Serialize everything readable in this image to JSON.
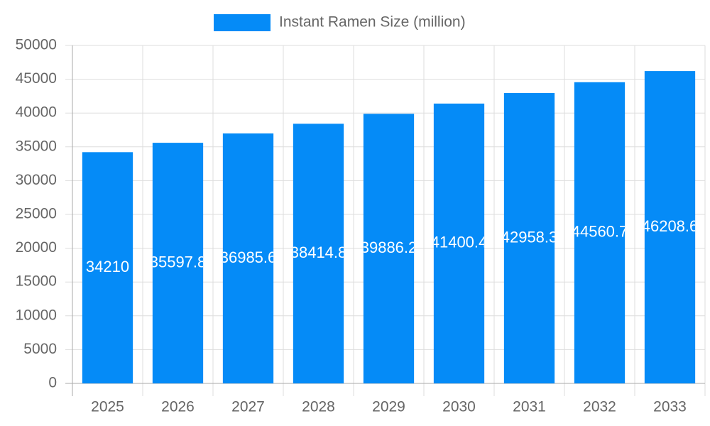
{
  "chart_data": {
    "type": "bar",
    "legend": "Instant Ramen Size (million)",
    "legend_position": "top",
    "color": "#058bf7",
    "categories": [
      "2025",
      "2026",
      "2027",
      "2028",
      "2029",
      "2030",
      "2031",
      "2032",
      "2033"
    ],
    "values": [
      34210,
      35597.8,
      36985.6,
      38414.8,
      39886.2,
      41400.4,
      42958.3,
      44560.7,
      46208.6
    ],
    "ylim": [
      0,
      50000
    ],
    "yticks": [
      0,
      5000,
      10000,
      15000,
      20000,
      25000,
      30000,
      35000,
      40000,
      45000,
      50000
    ],
    "grid": true
  }
}
